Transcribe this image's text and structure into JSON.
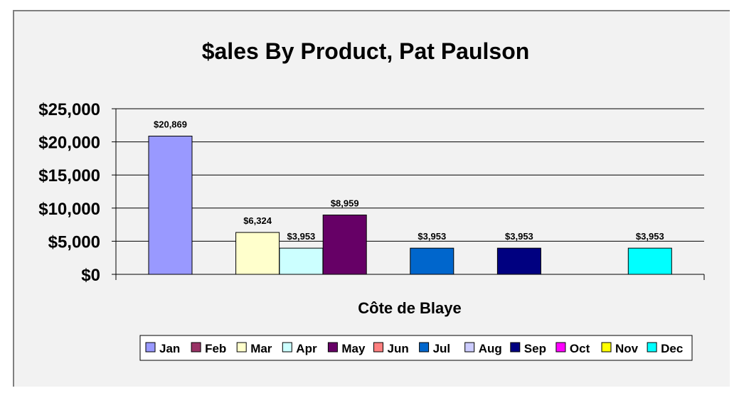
{
  "chart_data": {
    "type": "bar",
    "title": "$ales By Product, Pat Paulson",
    "xlabel": "Côte de Blaye",
    "ylabel": "",
    "categories": [
      "Côte de Blaye"
    ],
    "ylim": [
      0,
      25000
    ],
    "yticks": [
      0,
      5000,
      10000,
      15000,
      20000,
      25000
    ],
    "ytick_labels": [
      "$0",
      "$5,000",
      "$10,000",
      "$15,000",
      "$20,000",
      "$25,000"
    ],
    "grid": true,
    "legend": "bottom",
    "series": [
      {
        "name": "Jan",
        "values": [
          20869
        ],
        "label": "$20,869",
        "color": "#9999ff"
      },
      {
        "name": "Feb",
        "values": [
          null
        ],
        "label": "",
        "color": "#993366"
      },
      {
        "name": "Mar",
        "values": [
          6324
        ],
        "label": "$6,324",
        "color": "#ffffcc"
      },
      {
        "name": "Apr",
        "values": [
          3953
        ],
        "label": "$3,953",
        "color": "#ccffff"
      },
      {
        "name": "May",
        "values": [
          8959
        ],
        "label": "$8,959",
        "color": "#660066"
      },
      {
        "name": "Jun",
        "values": [
          null
        ],
        "label": "",
        "color": "#ff8080"
      },
      {
        "name": "Jul",
        "values": [
          3953
        ],
        "label": "$3,953",
        "color": "#0066cc"
      },
      {
        "name": "Aug",
        "values": [
          null
        ],
        "label": "",
        "color": "#ccccff"
      },
      {
        "name": "Sep",
        "values": [
          3953
        ],
        "label": "$3,953",
        "color": "#000080"
      },
      {
        "name": "Oct",
        "values": [
          null
        ],
        "label": "",
        "color": "#ff00ff"
      },
      {
        "name": "Nov",
        "values": [
          null
        ],
        "label": "",
        "color": "#ffff00"
      },
      {
        "name": "Dec",
        "values": [
          3953
        ],
        "label": "$3,953",
        "color": "#00ffff"
      }
    ]
  }
}
